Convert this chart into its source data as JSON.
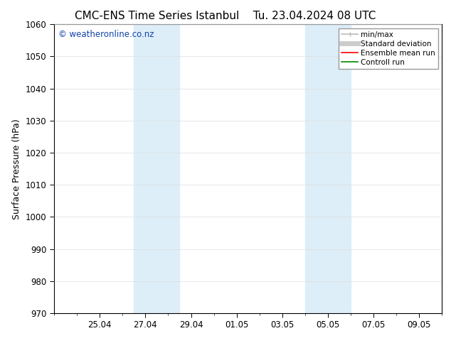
{
  "title_left": "CMC-ENS Time Series Istanbul",
  "title_right": "Tu. 23.04.2024 08 UTC",
  "ylabel": "Surface Pressure (hPa)",
  "ylim": [
    970,
    1060
  ],
  "yticks": [
    970,
    980,
    990,
    1000,
    1010,
    1020,
    1030,
    1040,
    1050,
    1060
  ],
  "xtick_labels": [
    "25.04",
    "27.04",
    "29.04",
    "01.05",
    "03.05",
    "05.05",
    "07.05",
    "09.05"
  ],
  "xtick_positions": [
    2,
    4,
    6,
    8,
    10,
    12,
    14,
    16
  ],
  "xlim": [
    0.0,
    17.0
  ],
  "background_color": "#ffffff",
  "shaded_bands": [
    {
      "x_start": 3.5,
      "x_end": 4.5,
      "color": "#ddeef8"
    },
    {
      "x_start": 4.5,
      "x_end": 5.5,
      "color": "#ddeef8"
    },
    {
      "x_start": 11.0,
      "x_end": 12.0,
      "color": "#ddeef8"
    },
    {
      "x_start": 12.0,
      "x_end": 13.0,
      "color": "#ddeef8"
    }
  ],
  "watermark_text": "© weatheronline.co.nz",
  "watermark_color": "#1144aa",
  "legend_entries": [
    {
      "label": "min/max",
      "color": "#bbbbbb",
      "lw": 1.2
    },
    {
      "label": "Standard deviation",
      "color": "#cccccc",
      "lw": 5
    },
    {
      "label": "Ensemble mean run",
      "color": "#ff0000",
      "lw": 1.2
    },
    {
      "label": "Controll run",
      "color": "#008800",
      "lw": 1.2
    }
  ],
  "grid_color": "#dddddd",
  "title_fontsize": 11,
  "axis_fontsize": 9,
  "tick_fontsize": 8.5
}
